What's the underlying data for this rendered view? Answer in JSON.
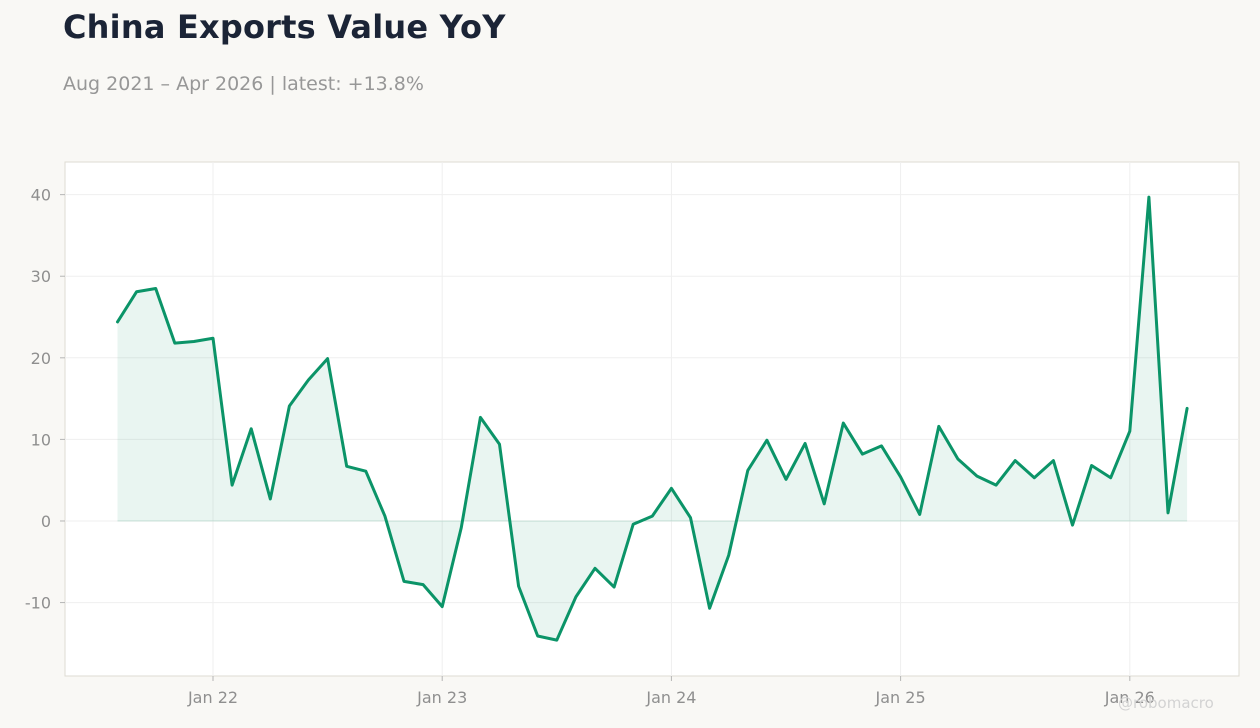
{
  "header": {
    "title": "China Exports Value YoY",
    "subtitle": "Aug 2021 – Apr 2026 | latest: +13.8%"
  },
  "watermark": "@robomacro",
  "colors": {
    "line": "#0b9468",
    "fill": "#0b9468",
    "background": "#f9f8f5",
    "plot_background": "#ffffff",
    "grid": "#efefef",
    "title": "#1b2436",
    "muted": "#979797"
  },
  "chart_data": {
    "type": "area",
    "title": "China Exports Value YoY",
    "subtitle": "Aug 2021 – Apr 2026 | latest: +13.8%",
    "xlabel": "",
    "ylabel": "",
    "x_start": "2021-08",
    "x_end": "2026-04",
    "xticks": [
      {
        "date": "2022-01",
        "label": "Jan 22"
      },
      {
        "date": "2023-01",
        "label": "Jan 23"
      },
      {
        "date": "2024-01",
        "label": "Jan 24"
      },
      {
        "date": "2025-01",
        "label": "Jan 25"
      },
      {
        "date": "2026-01",
        "label": "Jan 26"
      }
    ],
    "yticks": [
      -10,
      0,
      10,
      20,
      30,
      40
    ],
    "ylim": [
      -19,
      44
    ],
    "grid": true,
    "legend": "none",
    "series": [
      {
        "points": [
          {
            "date": "2021-08",
            "value": 24.4
          },
          {
            "date": "2021-09",
            "value": 28.1
          },
          {
            "date": "2021-10",
            "value": 28.5
          },
          {
            "date": "2021-11",
            "value": 21.8
          },
          {
            "date": "2021-12",
            "value": 22.0
          },
          {
            "date": "2022-01",
            "value": 22.4
          },
          {
            "date": "2022-02",
            "value": 4.4
          },
          {
            "date": "2022-03",
            "value": 11.3
          },
          {
            "date": "2022-04",
            "value": 2.7
          },
          {
            "date": "2022-05",
            "value": 14.1
          },
          {
            "date": "2022-06",
            "value": 17.3
          },
          {
            "date": "2022-07",
            "value": 19.9
          },
          {
            "date": "2022-08",
            "value": 6.7
          },
          {
            "date": "2022-09",
            "value": 6.1
          },
          {
            "date": "2022-10",
            "value": 0.6
          },
          {
            "date": "2022-11",
            "value": -7.4
          },
          {
            "date": "2022-12",
            "value": -7.8
          },
          {
            "date": "2023-01",
            "value": -10.5
          },
          {
            "date": "2023-02",
            "value": -0.8
          },
          {
            "date": "2023-03",
            "value": 12.7
          },
          {
            "date": "2023-04",
            "value": 9.4
          },
          {
            "date": "2023-05",
            "value": -8.0
          },
          {
            "date": "2023-06",
            "value": -14.1
          },
          {
            "date": "2023-07",
            "value": -14.6
          },
          {
            "date": "2023-08",
            "value": -9.3
          },
          {
            "date": "2023-09",
            "value": -5.8
          },
          {
            "date": "2023-10",
            "value": -8.1
          },
          {
            "date": "2023-11",
            "value": -0.4
          },
          {
            "date": "2023-12",
            "value": 0.6
          },
          {
            "date": "2024-01",
            "value": 4.0
          },
          {
            "date": "2024-02",
            "value": 0.4
          },
          {
            "date": "2024-03",
            "value": -10.7
          },
          {
            "date": "2024-04",
            "value": -4.2
          },
          {
            "date": "2024-05",
            "value": 6.2
          },
          {
            "date": "2024-06",
            "value": 9.9
          },
          {
            "date": "2024-07",
            "value": 5.1
          },
          {
            "date": "2024-08",
            "value": 9.5
          },
          {
            "date": "2024-09",
            "value": 2.1
          },
          {
            "date": "2024-10",
            "value": 12.0
          },
          {
            "date": "2024-11",
            "value": 8.2
          },
          {
            "date": "2024-12",
            "value": 9.2
          },
          {
            "date": "2025-01",
            "value": 5.4
          },
          {
            "date": "2025-02",
            "value": 0.8
          },
          {
            "date": "2025-03",
            "value": 11.6
          },
          {
            "date": "2025-04",
            "value": 7.6
          },
          {
            "date": "2025-05",
            "value": 5.5
          },
          {
            "date": "2025-06",
            "value": 4.4
          },
          {
            "date": "2025-07",
            "value": 7.4
          },
          {
            "date": "2025-08",
            "value": 5.3
          },
          {
            "date": "2025-09",
            "value": 7.4
          },
          {
            "date": "2025-10",
            "value": -0.5
          },
          {
            "date": "2025-11",
            "value": 6.8
          },
          {
            "date": "2025-12",
            "value": 5.3
          },
          {
            "date": "2026-01",
            "value": 11.0
          },
          {
            "date": "2026-02",
            "value": 39.7
          },
          {
            "date": "2026-03",
            "value": 1.0
          },
          {
            "date": "2026-04",
            "value": 13.8
          }
        ]
      }
    ]
  }
}
